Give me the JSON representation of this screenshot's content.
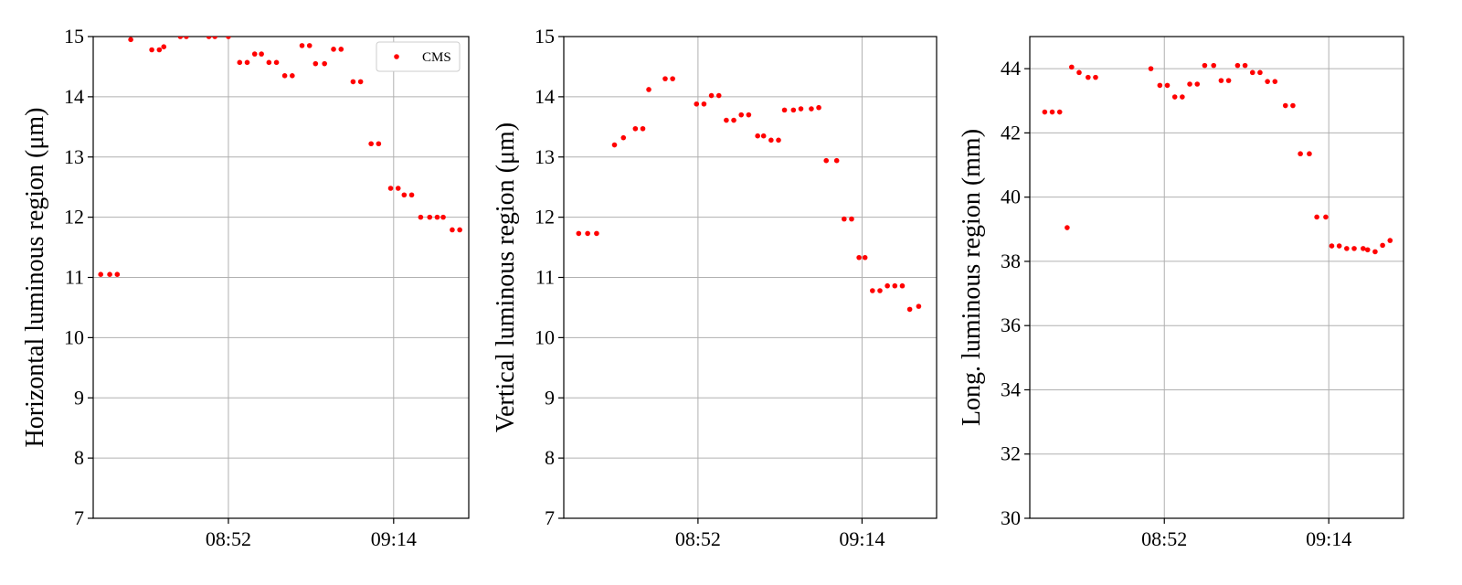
{
  "colors": {
    "marker": "#ff0000",
    "grid": "#b0b0b0"
  },
  "chart_data": [
    {
      "type": "scatter",
      "ylabel": "Horizontal luminous region (μm)",
      "xlim": [
        "08:34",
        "09:24"
      ],
      "ylim": [
        7,
        15
      ],
      "xticks": [
        "08:52",
        "09:14"
      ],
      "yticks": [
        7,
        8,
        9,
        10,
        11,
        12,
        13,
        14,
        15
      ],
      "grid": true,
      "legend": {
        "location": "upper right",
        "entries": [
          "CMS"
        ]
      },
      "series": [
        {
          "name": "CMS",
          "x": [
            "08:35:00",
            "08:36:12",
            "08:37:12",
            "08:39:00",
            "08:41:48",
            "08:42:48",
            "08:43:24",
            "08:45:36",
            "08:46:24",
            "08:49:24",
            "08:50:12",
            "08:52:00",
            "08:53:30",
            "08:54:30",
            "08:55:30",
            "08:56:24",
            "08:57:24",
            "08:58:24",
            "08:59:30",
            "09:00:30",
            "09:01:48",
            "09:02:48",
            "09:03:36",
            "09:04:48",
            "09:06:00",
            "09:07:00",
            "09:08:36",
            "09:09:36",
            "09:11:00",
            "09:12:00",
            "09:13:36",
            "09:14:36",
            "09:15:24",
            "09:16:24",
            "09:17:36",
            "09:18:48",
            "09:19:48",
            "09:20:36",
            "09:21:48",
            "09:22:48"
          ],
          "y": [
            11.05,
            11.05,
            11.05,
            14.95,
            14.78,
            14.78,
            14.83,
            15.0,
            15.0,
            15.0,
            15.0,
            15.0,
            14.57,
            14.57,
            14.71,
            14.71,
            14.57,
            14.57,
            14.35,
            14.35,
            14.85,
            14.85,
            14.55,
            14.55,
            14.79,
            14.79,
            14.25,
            14.25,
            13.22,
            13.22,
            12.48,
            12.48,
            12.37,
            12.37,
            12.0,
            12.0,
            12.0,
            12.0,
            11.79,
            11.79
          ]
        }
      ]
    },
    {
      "type": "scatter",
      "ylabel": "Vertical luminous region (μm)",
      "xlim": [
        "08:34",
        "09:24"
      ],
      "ylim": [
        7,
        15
      ],
      "xticks": [
        "08:52",
        "09:14"
      ],
      "yticks": [
        7,
        8,
        9,
        10,
        11,
        12,
        13,
        14,
        15
      ],
      "grid": true,
      "series": [
        {
          "name": "CMS",
          "x": [
            "08:36:00",
            "08:37:12",
            "08:38:24",
            "08:40:48",
            "08:42:00",
            "08:43:36",
            "08:44:36",
            "08:45:24",
            "08:47:36",
            "08:48:36",
            "08:51:48",
            "08:52:48",
            "08:53:48",
            "08:54:48",
            "08:55:48",
            "08:56:48",
            "08:57:48",
            "08:58:48",
            "09:00:00",
            "09:00:48",
            "09:01:48",
            "09:02:48",
            "09:03:36",
            "09:04:48",
            "09:05:48",
            "09:07:12",
            "09:08:12",
            "09:09:12",
            "09:10:36",
            "09:11:36",
            "09:12:36",
            "09:13:36",
            "09:14:24",
            "09:15:24",
            "09:16:24",
            "09:17:24",
            "09:18:24",
            "09:19:24",
            "09:20:24",
            "09:21:36"
          ],
          "y": [
            11.73,
            11.73,
            11.73,
            13.2,
            13.32,
            13.47,
            13.47,
            14.12,
            14.3,
            14.3,
            13.88,
            13.88,
            14.02,
            14.02,
            13.61,
            13.61,
            13.7,
            13.7,
            13.35,
            13.35,
            13.28,
            13.28,
            13.78,
            13.78,
            13.8,
            13.8,
            13.82,
            12.94,
            12.94,
            11.97,
            11.97,
            11.33,
            11.33,
            10.78,
            10.78,
            10.86,
            10.86,
            10.86,
            10.47,
            10.52
          ]
        }
      ]
    },
    {
      "type": "scatter",
      "ylabel": "Long. luminous region (mm)",
      "xlim": [
        "08:34",
        "09:24"
      ],
      "ylim": [
        30,
        45
      ],
      "xticks": [
        "08:52",
        "09:14"
      ],
      "yticks": [
        30,
        32,
        34,
        36,
        38,
        40,
        42,
        44
      ],
      "grid": true,
      "series": [
        {
          "name": "CMS",
          "x": [
            "08:36:00",
            "08:37:00",
            "08:38:00",
            "08:39:00",
            "08:39:36",
            "08:40:36",
            "08:41:48",
            "08:42:48",
            "08:50:12",
            "08:51:24",
            "08:52:24",
            "08:53:24",
            "08:54:24",
            "08:55:24",
            "08:56:24",
            "08:57:24",
            "08:58:36",
            "08:59:36",
            "09:00:36",
            "09:01:48",
            "09:02:48",
            "09:03:48",
            "09:04:48",
            "09:05:48",
            "09:06:48",
            "09:08:12",
            "09:09:12",
            "09:10:12",
            "09:11:24",
            "09:12:24",
            "09:13:36",
            "09:14:24",
            "09:15:24",
            "09:16:24",
            "09:17:24",
            "09:18:36",
            "09:19:12",
            "09:20:12",
            "09:21:12",
            "09:22:12"
          ],
          "y": [
            42.65,
            42.65,
            42.65,
            39.05,
            44.05,
            43.88,
            43.73,
            43.73,
            44.0,
            43.48,
            43.48,
            43.12,
            43.12,
            43.52,
            43.52,
            44.1,
            44.1,
            43.63,
            43.63,
            44.1,
            44.1,
            43.88,
            43.88,
            43.6,
            43.6,
            42.85,
            42.85,
            41.35,
            41.35,
            39.38,
            39.38,
            38.48,
            38.48,
            38.4,
            38.4,
            38.4,
            38.36,
            38.3,
            38.5,
            38.65
          ]
        }
      ]
    }
  ]
}
